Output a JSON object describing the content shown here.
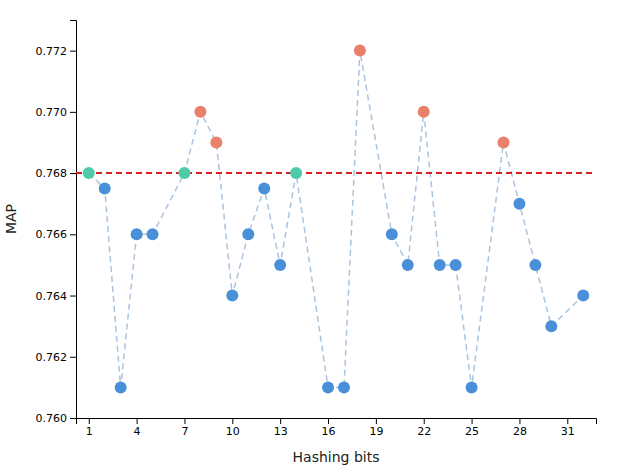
{
  "chart_data": {
    "type": "scatter",
    "xlabel": "Hashing bits",
    "ylabel": "MAP",
    "x": [
      1,
      2,
      3,
      4,
      5,
      7,
      8,
      9,
      10,
      11,
      12,
      13,
      14,
      16,
      17,
      18,
      20,
      21,
      22,
      23,
      24,
      25,
      27,
      28,
      29,
      30,
      32
    ],
    "series": [
      {
        "values": [
          0.768,
          0.7675,
          0.761,
          0.766,
          0.766,
          0.768,
          0.77,
          0.769,
          0.764,
          0.766,
          0.7675,
          0.765,
          0.768,
          0.761,
          0.761,
          0.772,
          0.766,
          0.765,
          0.77,
          0.765,
          0.765,
          0.761,
          0.769,
          0.767,
          0.765,
          0.763,
          0.764
        ],
        "colors": [
          "#4ecba8",
          "#4a90d9",
          "#4a90d9",
          "#4a90d9",
          "#4a90d9",
          "#4ecba8",
          "#e8806a",
          "#e8806a",
          "#4a90d9",
          "#4a90d9",
          "#4a90d9",
          "#4a90d9",
          "#4ecba8",
          "#4a90d9",
          "#4a90d9",
          "#e8806a",
          "#4a90d9",
          "#4a90d9",
          "#e8806a",
          "#4a90d9",
          "#4a90d9",
          "#4a90d9",
          "#e8806a",
          "#4a90d9",
          "#4a90d9",
          "#4a90d9",
          "#4a90d9"
        ],
        "color": "#aac4e0",
        "line_style": "dashed",
        "marker": "circle"
      }
    ],
    "baseline": {
      "value": 0.768,
      "color": "#d42020",
      "line_style": "dashed"
    },
    "xlim": [
      0.2,
      32.8
    ],
    "xticks": [
      1,
      4,
      7,
      10,
      13,
      16,
      19,
      22,
      25,
      28,
      31
    ],
    "ylim": [
      0.76,
      0.773
    ],
    "yticks": [
      {
        "value": 0.76,
        "label": "0.760"
      },
      0.762,
      0.764,
      0.766,
      0.768,
      {
        "value": 0.77,
        "label": "0.770"
      },
      0.772
    ],
    "grid": false
  }
}
